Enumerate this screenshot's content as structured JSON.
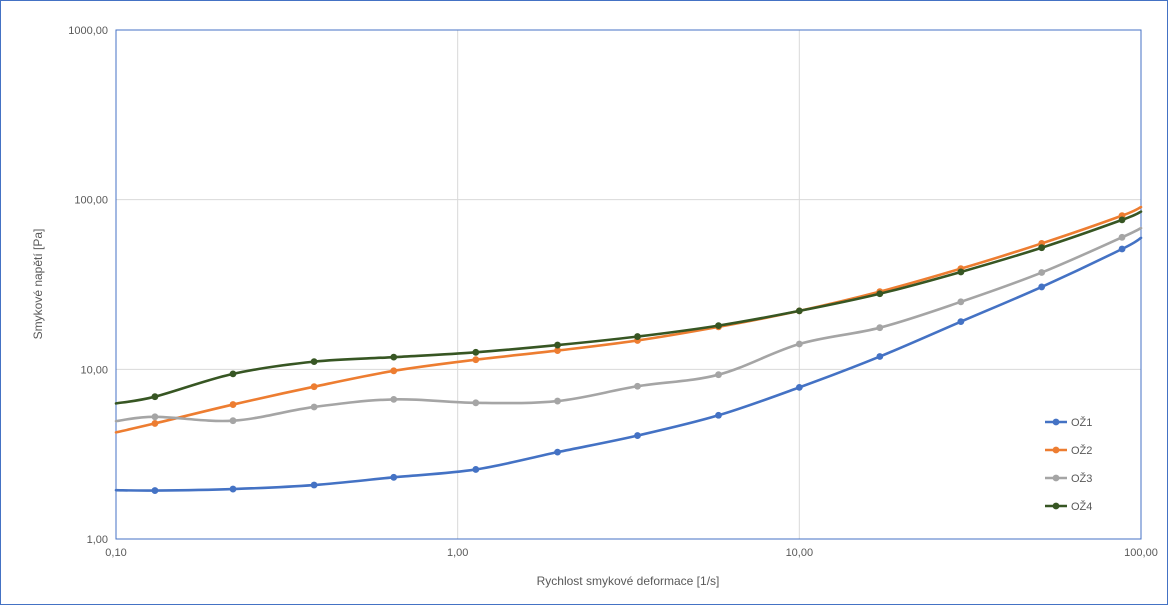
{
  "chart_data": {
    "type": "line",
    "title": "",
    "xlabel": "Rychlost smykové deformace [1/s]",
    "ylabel": "Smykové napětí [Pa]",
    "x_scale": "log",
    "y_scale": "log",
    "xlim": [
      0.1,
      100
    ],
    "ylim": [
      1,
      1000
    ],
    "x_ticks": [
      0.1,
      1,
      10,
      100
    ],
    "x_tick_labels": [
      "0,10",
      "1,00",
      "10,00",
      "100,00"
    ],
    "y_ticks": [
      1,
      10,
      100,
      1000
    ],
    "y_tick_labels": [
      "1,00",
      "10,00",
      "100,00",
      "1000,00"
    ],
    "grid": true,
    "legend_position": "right",
    "series": [
      {
        "name": "OŽ1",
        "color": "#4472c4",
        "x": [
          0.1,
          0.13,
          0.22,
          0.38,
          0.65,
          1.13,
          1.96,
          3.36,
          5.8,
          10,
          17.2,
          29.7,
          51.2,
          88,
          100
        ],
        "y": [
          1.94,
          1.93,
          1.97,
          2.08,
          2.31,
          2.57,
          3.25,
          4.07,
          5.36,
          7.83,
          11.9,
          19.1,
          30.6,
          51.2,
          59.5
        ]
      },
      {
        "name": "OŽ2",
        "color": "#ed7d31",
        "x": [
          0.1,
          0.13,
          0.22,
          0.38,
          0.65,
          1.13,
          1.96,
          3.36,
          5.8,
          10,
          17.2,
          29.7,
          51.2,
          88,
          100
        ],
        "y": [
          4.25,
          4.8,
          6.2,
          7.9,
          9.8,
          11.4,
          12.9,
          14.8,
          17.8,
          22.1,
          28.7,
          39.2,
          55.2,
          80.5,
          90.5
        ]
      },
      {
        "name": "OŽ3",
        "color": "#a5a5a5",
        "x": [
          0.1,
          0.13,
          0.22,
          0.38,
          0.65,
          1.13,
          1.96,
          3.36,
          5.8,
          10,
          17.2,
          29.7,
          51.2,
          88,
          100
        ],
        "y": [
          4.95,
          5.25,
          4.98,
          6.0,
          6.65,
          6.35,
          6.5,
          7.95,
          9.3,
          14.1,
          17.6,
          25.0,
          37.2,
          60.0,
          68.0
        ]
      },
      {
        "name": "OŽ4",
        "color": "#375623",
        "x": [
          0.1,
          0.13,
          0.22,
          0.38,
          0.65,
          1.13,
          1.96,
          3.36,
          5.8,
          10,
          17.2,
          29.7,
          51.2,
          88,
          100
        ],
        "y": [
          6.3,
          6.9,
          9.4,
          11.1,
          11.8,
          12.6,
          13.9,
          15.6,
          18.1,
          22.1,
          27.9,
          37.5,
          52.1,
          76.0,
          85.0
        ]
      }
    ]
  }
}
